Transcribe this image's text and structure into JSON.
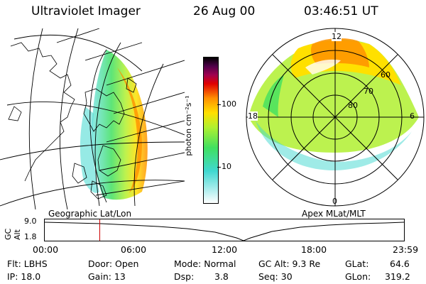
{
  "header": {
    "title": "Ultraviolet Imager",
    "date": "26 Aug 00",
    "time": "03:46:51 UT"
  },
  "left_panel": {
    "caption": "Geographic Lat/Lon"
  },
  "right_panel": {
    "caption": "Apex MLat/MLT",
    "mlt_labels": {
      "top": "12",
      "left": "18",
      "right": "6",
      "bottom": "0"
    },
    "lat_labels": [
      "60",
      "70",
      "80"
    ]
  },
  "colorbar": {
    "unit_label": "photon cm⁻²s⁻¹",
    "ticks": [
      "100",
      "10"
    ]
  },
  "timeline": {
    "axis_label": "GC Alt",
    "y_ticks": [
      "9.0",
      "1.8"
    ],
    "x_ticks": [
      "00:00",
      "06:00",
      "12:00",
      "18:00",
      "23:59"
    ],
    "marker_time": "03:46:51",
    "marker_color": "#cc0000"
  },
  "status": {
    "flt": "Flt: LBHS",
    "ip": "IP: 18.0",
    "door": "Door: Open",
    "gain": "Gain: 13",
    "mode": "Mode: Normal",
    "dsp_label": "Dsp:",
    "dsp_value": "3.8",
    "gc_alt": "GC Alt: 9.3 Re",
    "seq": "Seq: 30",
    "glat_label": "GLat:",
    "glat_value": "64.6",
    "glon_label": "GLon:",
    "glon_value": "319.2"
  },
  "colors": {
    "colorbar_stops": [
      "#ffffff",
      "#b8f0f0",
      "#40d8d0",
      "#40e060",
      "#b0f030",
      "#ffe000",
      "#ff9000",
      "#e00000",
      "#a00050",
      "#50004a",
      "#000000"
    ]
  }
}
